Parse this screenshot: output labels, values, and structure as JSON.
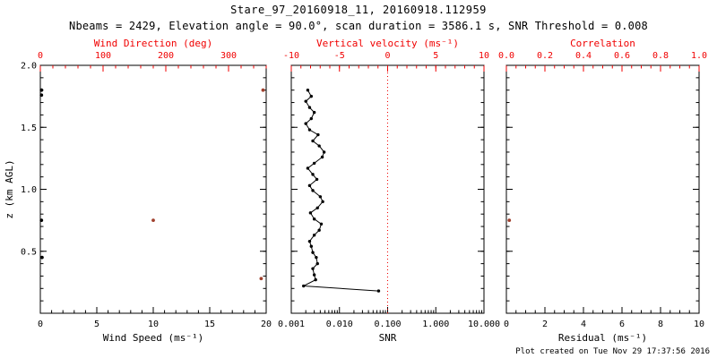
{
  "title": "Stare_97_20160918_11, 20160918.112959",
  "subtitle": "Nbeams = 2429, Elevation angle = 90.0°, scan duration = 3586.1 s, SNR Threshold = 0.008",
  "footer": "Plot created on Tue Nov 29 17:37:56 2016",
  "colors": {
    "axis": "#000000",
    "secondary_axis": "#f00000",
    "data_point": "#a0402d",
    "background": "#ffffff"
  },
  "y_axis": {
    "label": "z (km AGL)",
    "lim": [
      0,
      2
    ],
    "ticks": [
      0.5,
      1.0,
      1.5,
      2.0
    ],
    "tick_labels": [
      "0.5",
      "1.0",
      "1.5",
      "2.0"
    ]
  },
  "chart_data": [
    {
      "type": "scatter",
      "panel": "wind",
      "xlabel_bottom": "Wind Speed (ms⁻¹)",
      "xlim_bottom": [
        0,
        20
      ],
      "xticks_bottom": [
        0,
        5,
        10,
        15,
        20
      ],
      "xtick_labels_bottom": [
        "0",
        "5",
        "10",
        "15",
        "20"
      ],
      "xlabel_top": "Wind Direction (deg)",
      "xlim_top": [
        0,
        360
      ],
      "xticks_top": [
        0,
        100,
        200,
        300
      ],
      "xtick_labels_top": [
        "0",
        "100",
        "200",
        "300"
      ],
      "ylabel": "z (km AGL)",
      "ylim": [
        0,
        2
      ],
      "series": [
        {
          "name": "wind-speed",
          "axis": "bottom",
          "color": "#000000",
          "marker": "dot",
          "points": [
            {
              "x": 0.1,
              "z": 1.8
            },
            {
              "x": 0.1,
              "z": 1.76
            },
            {
              "x": 0.1,
              "z": 0.75
            },
            {
              "x": 0.15,
              "z": 0.45
            }
          ]
        },
        {
          "name": "wind-direction",
          "axis": "top",
          "color": "#a0402d",
          "marker": "dot",
          "points": [
            {
              "x": 180,
              "z": 0.75
            },
            {
              "x": 355,
              "z": 1.8
            },
            {
              "x": 352,
              "z": 0.28
            }
          ]
        }
      ]
    },
    {
      "type": "line",
      "panel": "snr",
      "xlabel_bottom": "SNR",
      "xscale": "log",
      "xlim_bottom": [
        0.001,
        10
      ],
      "xticks_bottom": [
        0.001,
        0.01,
        0.1,
        1,
        10
      ],
      "xtick_labels_bottom": [
        "0.001",
        "0.010",
        "0.100",
        "1.000",
        "10.000"
      ],
      "xlabel_top": "Vertical velocity (ms⁻¹)",
      "xlim_top": [
        -10,
        10
      ],
      "xticks_top": [
        -10,
        -5,
        0,
        5,
        10
      ],
      "xtick_labels_top": [
        "-10",
        "-5",
        "0",
        "5",
        "10"
      ],
      "ylim": [
        0,
        2
      ],
      "zero_velocity_line": 0,
      "profile": {
        "z": [
          0.18,
          0.22,
          0.27,
          0.31,
          0.36,
          0.4,
          0.45,
          0.49,
          0.54,
          0.58,
          0.63,
          0.67,
          0.72,
          0.76,
          0.81,
          0.85,
          0.9,
          0.94,
          0.99,
          1.03,
          1.08,
          1.12,
          1.17,
          1.21,
          1.26,
          1.3,
          1.35,
          1.39,
          1.44,
          1.48,
          1.53,
          1.57,
          1.62,
          1.66,
          1.71,
          1.75,
          1.8
        ],
        "snr": [
          0.065,
          0.0018,
          0.0032,
          0.003,
          0.0028,
          0.0035,
          0.0033,
          0.0028,
          0.0026,
          0.0024,
          0.003,
          0.0038,
          0.0042,
          0.003,
          0.0025,
          0.0035,
          0.0045,
          0.004,
          0.0028,
          0.0024,
          0.0034,
          0.0028,
          0.0022,
          0.003,
          0.0044,
          0.0048,
          0.0038,
          0.0028,
          0.0036,
          0.0024,
          0.002,
          0.0026,
          0.003,
          0.0024,
          0.002,
          0.0026,
          0.0022
        ]
      }
    },
    {
      "type": "scatter",
      "panel": "residual",
      "xlabel_bottom": "Residual (ms⁻¹)",
      "xlim_bottom": [
        0,
        10
      ],
      "xticks_bottom": [
        0,
        2,
        4,
        6,
        8,
        10
      ],
      "xtick_labels_bottom": [
        "0",
        "2",
        "4",
        "6",
        "8",
        "10"
      ],
      "xlabel_top": "Correlation",
      "xlim_top": [
        0,
        1
      ],
      "xticks_top": [
        0,
        0.2,
        0.4,
        0.6,
        0.8,
        1.0
      ],
      "xtick_labels_top": [
        "0.0",
        "0.2",
        "0.4",
        "0.6",
        "0.8",
        "1.0"
      ],
      "ylim": [
        0,
        2
      ],
      "series": [
        {
          "name": "residual",
          "axis": "bottom",
          "color": "#a0402d",
          "marker": "dot",
          "points": [
            {
              "x": 0.15,
              "z": 0.75
            }
          ]
        }
      ]
    }
  ]
}
